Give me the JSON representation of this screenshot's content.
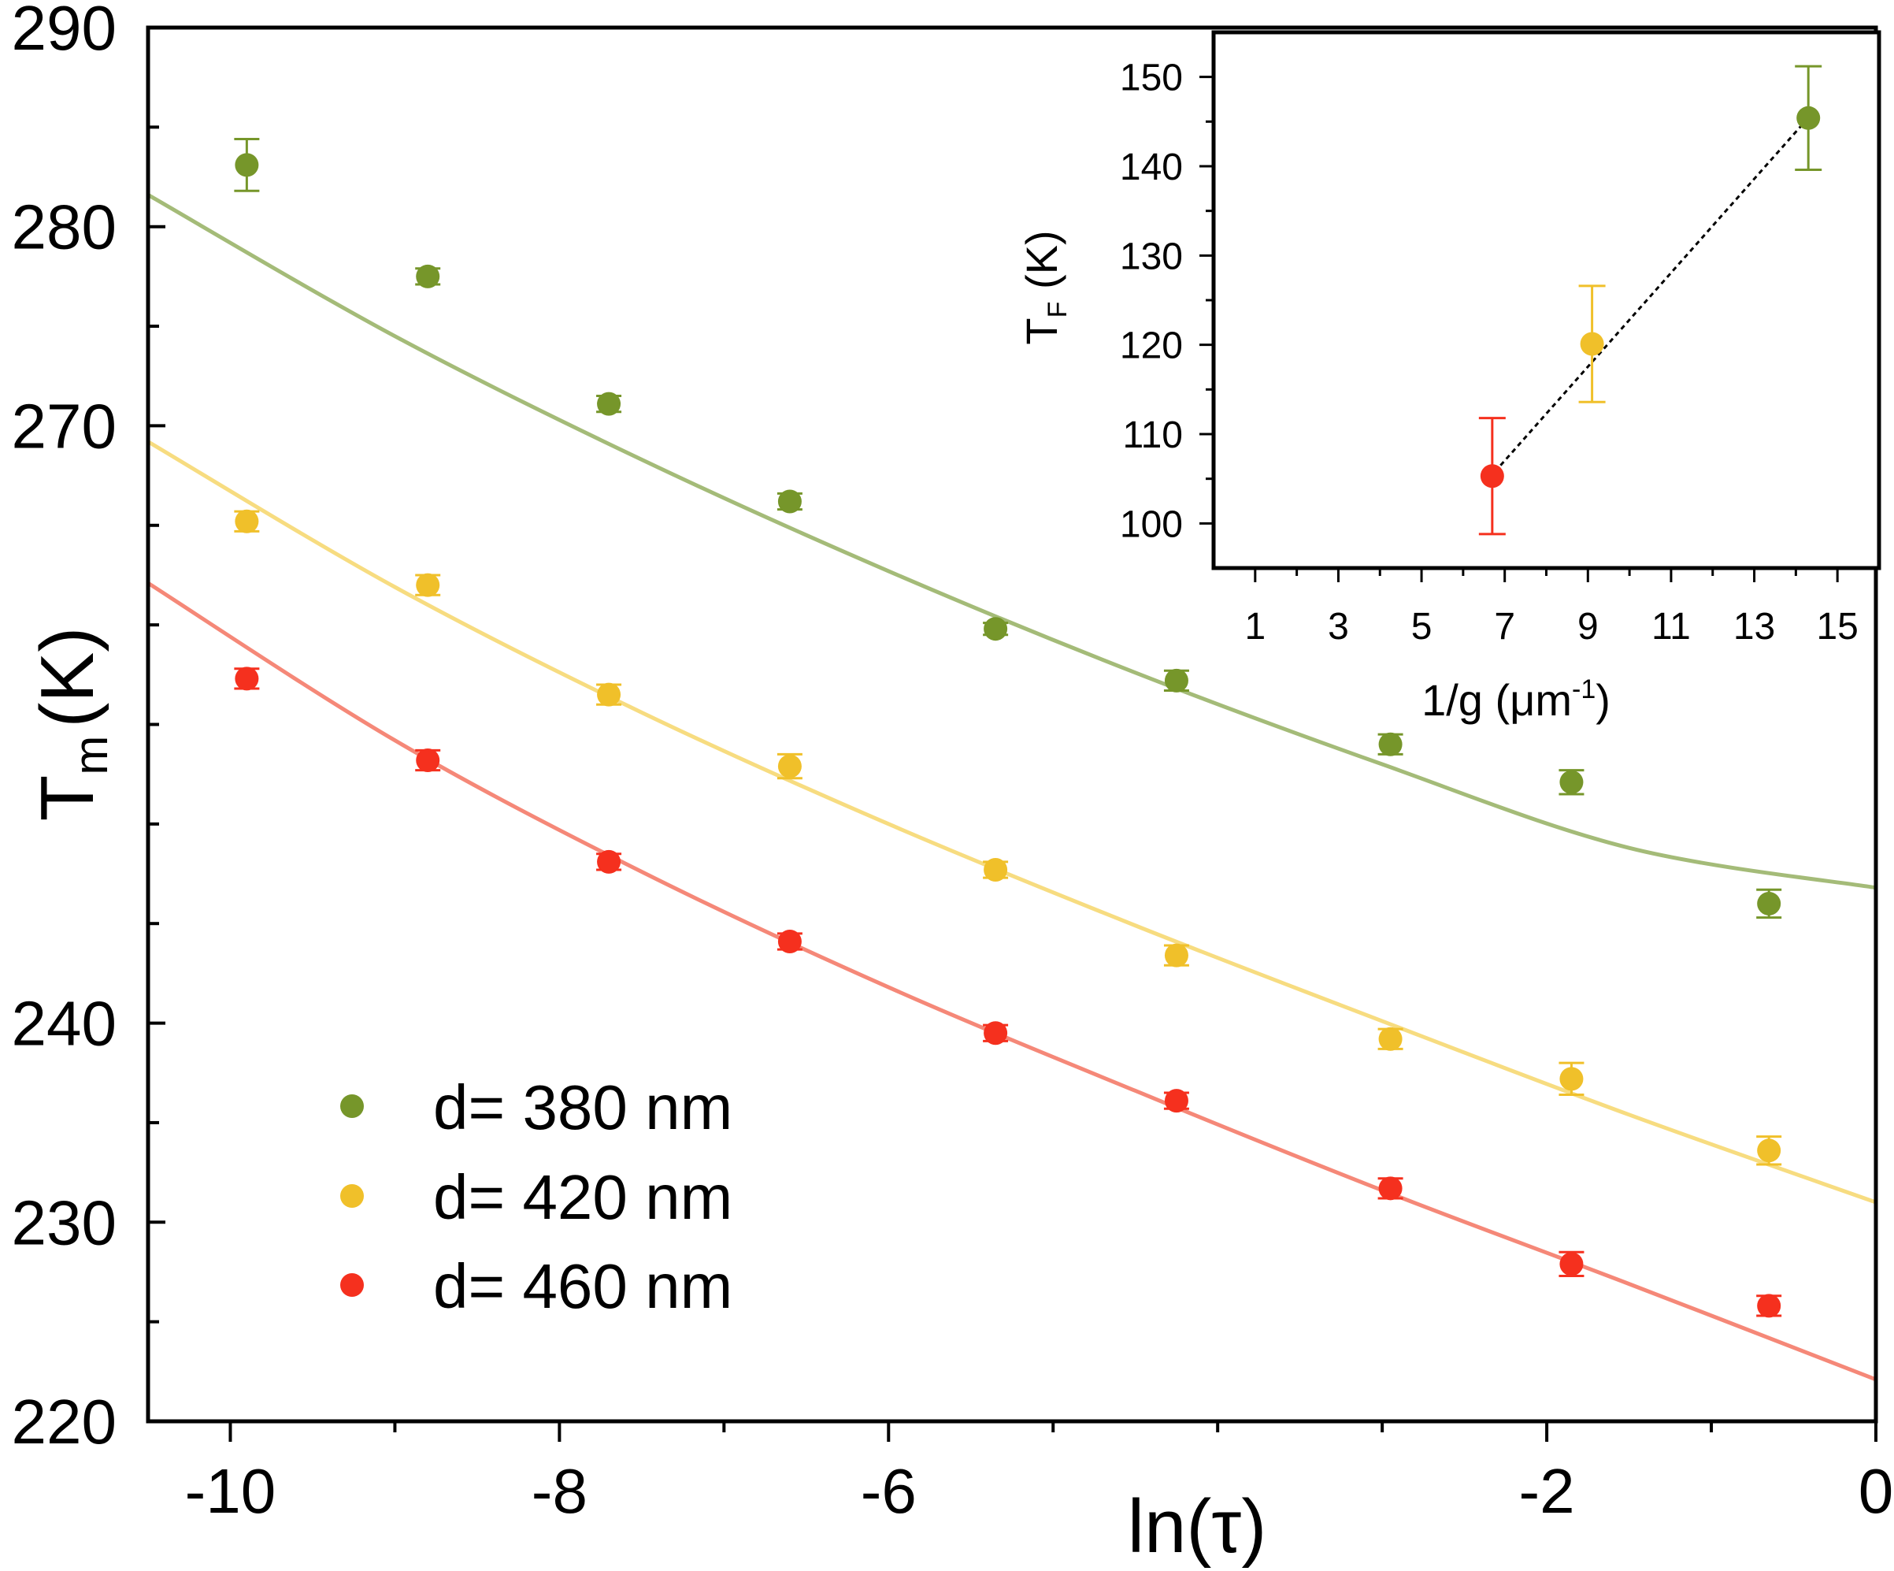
{
  "chart_data": [
    {
      "type": "scatter",
      "name": "main",
      "xlabel": "ln(τ)",
      "ylabel_main": "T",
      "ylabel_sub": "m",
      "ylabel_unit": "(K)",
      "xlim": [
        -10.5,
        0
      ],
      "ylim": [
        220,
        290
      ],
      "x_ticks": [
        {
          "value": -10,
          "label": "-10"
        },
        {
          "value": -8,
          "label": "-8"
        },
        {
          "value": -6,
          "label": "-6"
        },
        {
          "value": -2,
          "label": "-2"
        },
        {
          "value": 0,
          "label": "0"
        }
      ],
      "x_minor_ticks": [
        -9,
        -7,
        -5,
        -4,
        -3,
        -1
      ],
      "y_ticks": [
        {
          "value": 220,
          "label": "220"
        },
        {
          "value": 230,
          "label": "230"
        },
        {
          "value": 240,
          "label": "240"
        },
        {
          "value": 270,
          "label": "270"
        },
        {
          "value": 280,
          "label": "280"
        },
        {
          "value": 290,
          "label": "290"
        }
      ],
      "y_minor_ticks": [
        225,
        235,
        245,
        250,
        255,
        260,
        265,
        275,
        285
      ],
      "series": [
        {
          "name": "d= 380 nm",
          "color": "#76962a",
          "fit_color": "#a4bb78",
          "x": [
            -9.9,
            -8.8,
            -7.7,
            -6.6,
            -5.35,
            -4.25,
            -2.95,
            -1.85,
            -0.65
          ],
          "y": [
            283.1,
            277.5,
            271.1,
            266.2,
            259.8,
            257.2,
            254.0,
            252.1,
            246.0
          ],
          "err": [
            1.3,
            0.4,
            0.4,
            0.4,
            0.3,
            0.5,
            0.5,
            0.6,
            0.7
          ],
          "fit": [
            [
              -10.5,
              281.6
            ],
            [
              -9.0,
              274.5
            ],
            [
              -7.5,
              268.3
            ],
            [
              -6.0,
              262.7
            ],
            [
              -4.5,
              257.6
            ],
            [
              -3.0,
              253.0
            ],
            [
              -1.5,
              248.8
            ],
            [
              0.0,
              246.8
            ]
          ]
        },
        {
          "name": "d= 420 nm",
          "color": "#f0c02a",
          "fit_color": "#f7dc80",
          "x": [
            -9.9,
            -8.8,
            -7.7,
            -6.6,
            -5.35,
            -4.25,
            -2.95,
            -1.85,
            -0.65
          ],
          "y": [
            265.2,
            262.0,
            256.5,
            252.9,
            247.7,
            243.4,
            239.2,
            237.2,
            233.6
          ],
          "err": [
            0.5,
            0.5,
            0.5,
            0.6,
            0.4,
            0.5,
            0.5,
            0.8,
            0.7
          ],
          "fit": [
            [
              -10.5,
              269.2
            ],
            [
              -9.0,
              261.9
            ],
            [
              -7.5,
              255.6
            ],
            [
              -6.0,
              250.0
            ],
            [
              -4.5,
              244.9
            ],
            [
              -3.0,
              240.1
            ],
            [
              -1.5,
              235.4
            ],
            [
              0.0,
              231.0
            ]
          ]
        },
        {
          "name": "d= 460 nm",
          "color": "#f5301e",
          "fit_color": "#f58878",
          "x": [
            -9.9,
            -8.8,
            -7.7,
            -6.6,
            -5.35,
            -4.25,
            -2.95,
            -1.85,
            -0.65
          ],
          "y": [
            257.3,
            253.2,
            248.1,
            244.1,
            239.5,
            236.1,
            231.7,
            227.9,
            225.8
          ],
          "err": [
            0.5,
            0.5,
            0.4,
            0.4,
            0.4,
            0.4,
            0.5,
            0.6,
            0.5
          ],
          "fit": [
            [
              -10.5,
              262.1
            ],
            [
              -9.0,
              254.2
            ],
            [
              -7.5,
              247.6
            ],
            [
              -6.0,
              241.8
            ],
            [
              -4.5,
              236.6
            ],
            [
              -3.0,
              231.6
            ],
            [
              -1.5,
              226.9
            ],
            [
              0.0,
              222.1
            ]
          ]
        }
      ],
      "legend_position": "bottom-left"
    },
    {
      "type": "scatter",
      "name": "inset",
      "xlabel_main": "1/g (μm",
      "xlabel_sup": "-1",
      "xlabel_close": ")",
      "ylabel_main": "T",
      "ylabel_sub": "F",
      "ylabel_unit": " (K)",
      "xlim": [
        0,
        16
      ],
      "ylim": [
        95,
        155
      ],
      "x_ticks": [
        {
          "value": 1,
          "label": "1"
        },
        {
          "value": 3,
          "label": "3"
        },
        {
          "value": 5,
          "label": "5"
        },
        {
          "value": 7,
          "label": "7"
        },
        {
          "value": 9,
          "label": "9"
        },
        {
          "value": 11,
          "label": "11"
        },
        {
          "value": 13,
          "label": "13"
        },
        {
          "value": 15,
          "label": "15"
        }
      ],
      "x_minor_ticks": [
        2,
        4,
        6,
        8,
        10,
        12,
        14
      ],
      "y_ticks": [
        {
          "value": 100,
          "label": "100"
        },
        {
          "value": 110,
          "label": "110"
        },
        {
          "value": 120,
          "label": "120"
        },
        {
          "value": 130,
          "label": "130"
        },
        {
          "value": 140,
          "label": "140"
        },
        {
          "value": 150,
          "label": "150"
        }
      ],
      "y_minor_ticks": [
        105,
        115,
        125,
        135,
        145
      ],
      "points": [
        {
          "x": 6.7,
          "y": 105.3,
          "err": 6.5,
          "color": "#f5301e"
        },
        {
          "x": 9.1,
          "y": 120.1,
          "err": 6.5,
          "color": "#f0c02a"
        },
        {
          "x": 14.3,
          "y": 145.4,
          "err": 5.8,
          "color": "#76962a"
        }
      ],
      "fit_line": {
        "color": "#000000",
        "style": "dotted",
        "from": [
          6.9,
          106.5
        ],
        "to": [
          14.2,
          144.9
        ]
      }
    }
  ]
}
